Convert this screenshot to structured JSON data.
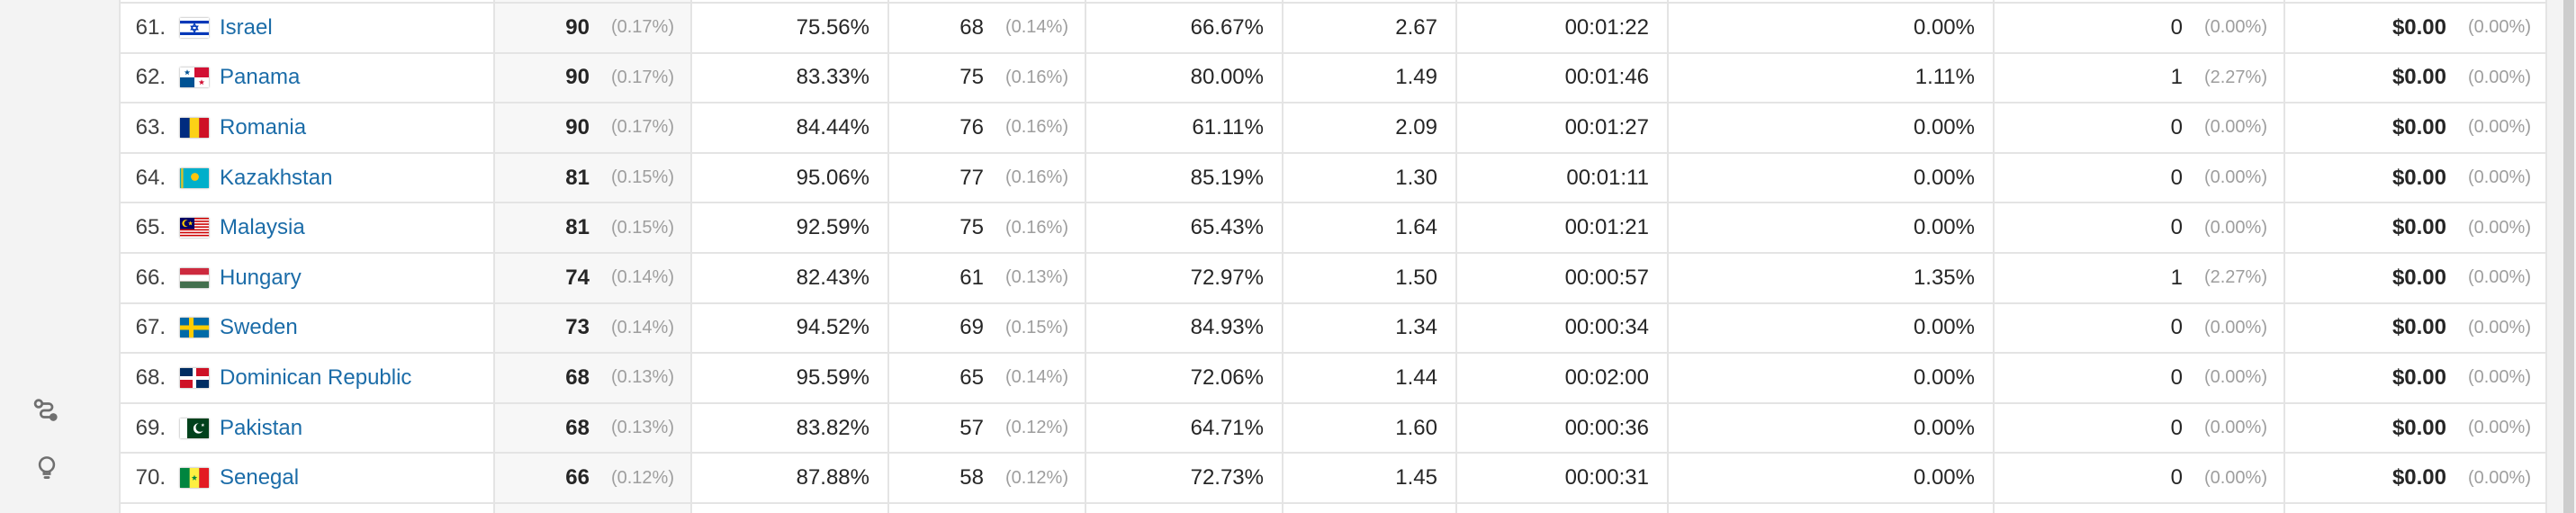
{
  "colors": {
    "link": "#1b6ca8",
    "rail_bg": "#f3f3f3",
    "row_border": "#e4e4e4",
    "sorted_column_bg": "#f7f7f7",
    "text": "#262626",
    "muted_text": "#9e9e9e",
    "icon": "#6f6f6f",
    "scroll_thumb": "#cdcdcd"
  },
  "sidebar": {
    "items": [
      {
        "id": "attribution",
        "icon": "route-icon"
      },
      {
        "id": "discover",
        "icon": "lightbulb-icon"
      }
    ]
  },
  "table": {
    "rows": [
      {
        "rank": "61.",
        "flag": "il",
        "country": "Israel",
        "users": "90",
        "users_share": "(0.17%)",
        "new_sessions_pct": "75.56%",
        "new_users": "68",
        "new_users_share": "(0.14%)",
        "bounce_rate": "66.67%",
        "pages_per_session": "2.67",
        "avg_session_duration": "00:01:22",
        "conversion_rate": "0.00%",
        "goal_completions": "0",
        "goal_completions_share": "(0.00%)",
        "goal_value": "$0.00",
        "goal_value_share": "(0.00%)"
      },
      {
        "rank": "62.",
        "flag": "pa",
        "country": "Panama",
        "users": "90",
        "users_share": "(0.17%)",
        "new_sessions_pct": "83.33%",
        "new_users": "75",
        "new_users_share": "(0.16%)",
        "bounce_rate": "80.00%",
        "pages_per_session": "1.49",
        "avg_session_duration": "00:01:46",
        "conversion_rate": "1.11%",
        "goal_completions": "1",
        "goal_completions_share": "(2.27%)",
        "goal_value": "$0.00",
        "goal_value_share": "(0.00%)"
      },
      {
        "rank": "63.",
        "flag": "ro",
        "country": "Romania",
        "users": "90",
        "users_share": "(0.17%)",
        "new_sessions_pct": "84.44%",
        "new_users": "76",
        "new_users_share": "(0.16%)",
        "bounce_rate": "61.11%",
        "pages_per_session": "2.09",
        "avg_session_duration": "00:01:27",
        "conversion_rate": "0.00%",
        "goal_completions": "0",
        "goal_completions_share": "(0.00%)",
        "goal_value": "$0.00",
        "goal_value_share": "(0.00%)"
      },
      {
        "rank": "64.",
        "flag": "kz",
        "country": "Kazakhstan",
        "users": "81",
        "users_share": "(0.15%)",
        "new_sessions_pct": "95.06%",
        "new_users": "77",
        "new_users_share": "(0.16%)",
        "bounce_rate": "85.19%",
        "pages_per_session": "1.30",
        "avg_session_duration": "00:01:11",
        "conversion_rate": "0.00%",
        "goal_completions": "0",
        "goal_completions_share": "(0.00%)",
        "goal_value": "$0.00",
        "goal_value_share": "(0.00%)"
      },
      {
        "rank": "65.",
        "flag": "my",
        "country": "Malaysia",
        "users": "81",
        "users_share": "(0.15%)",
        "new_sessions_pct": "92.59%",
        "new_users": "75",
        "new_users_share": "(0.16%)",
        "bounce_rate": "65.43%",
        "pages_per_session": "1.64",
        "avg_session_duration": "00:01:21",
        "conversion_rate": "0.00%",
        "goal_completions": "0",
        "goal_completions_share": "(0.00%)",
        "goal_value": "$0.00",
        "goal_value_share": "(0.00%)"
      },
      {
        "rank": "66.",
        "flag": "hu",
        "country": "Hungary",
        "users": "74",
        "users_share": "(0.14%)",
        "new_sessions_pct": "82.43%",
        "new_users": "61",
        "new_users_share": "(0.13%)",
        "bounce_rate": "72.97%",
        "pages_per_session": "1.50",
        "avg_session_duration": "00:00:57",
        "conversion_rate": "1.35%",
        "goal_completions": "1",
        "goal_completions_share": "(2.27%)",
        "goal_value": "$0.00",
        "goal_value_share": "(0.00%)"
      },
      {
        "rank": "67.",
        "flag": "se",
        "country": "Sweden",
        "users": "73",
        "users_share": "(0.14%)",
        "new_sessions_pct": "94.52%",
        "new_users": "69",
        "new_users_share": "(0.15%)",
        "bounce_rate": "84.93%",
        "pages_per_session": "1.34",
        "avg_session_duration": "00:00:34",
        "conversion_rate": "0.00%",
        "goal_completions": "0",
        "goal_completions_share": "(0.00%)",
        "goal_value": "$0.00",
        "goal_value_share": "(0.00%)"
      },
      {
        "rank": "68.",
        "flag": "do",
        "country": "Dominican Republic",
        "users": "68",
        "users_share": "(0.13%)",
        "new_sessions_pct": "95.59%",
        "new_users": "65",
        "new_users_share": "(0.14%)",
        "bounce_rate": "72.06%",
        "pages_per_session": "1.44",
        "avg_session_duration": "00:02:00",
        "conversion_rate": "0.00%",
        "goal_completions": "0",
        "goal_completions_share": "(0.00%)",
        "goal_value": "$0.00",
        "goal_value_share": "(0.00%)"
      },
      {
        "rank": "69.",
        "flag": "pk",
        "country": "Pakistan",
        "users": "68",
        "users_share": "(0.13%)",
        "new_sessions_pct": "83.82%",
        "new_users": "57",
        "new_users_share": "(0.12%)",
        "bounce_rate": "64.71%",
        "pages_per_session": "1.60",
        "avg_session_duration": "00:00:36",
        "conversion_rate": "0.00%",
        "goal_completions": "0",
        "goal_completions_share": "(0.00%)",
        "goal_value": "$0.00",
        "goal_value_share": "(0.00%)"
      },
      {
        "rank": "70.",
        "flag": "sn",
        "country": "Senegal",
        "users": "66",
        "users_share": "(0.12%)",
        "new_sessions_pct": "87.88%",
        "new_users": "58",
        "new_users_share": "(0.12%)",
        "bounce_rate": "72.73%",
        "pages_per_session": "1.45",
        "avg_session_duration": "00:00:31",
        "conversion_rate": "0.00%",
        "goal_completions": "0",
        "goal_completions_share": "(0.00%)",
        "goal_value": "$0.00",
        "goal_value_share": "(0.00%)"
      }
    ]
  }
}
